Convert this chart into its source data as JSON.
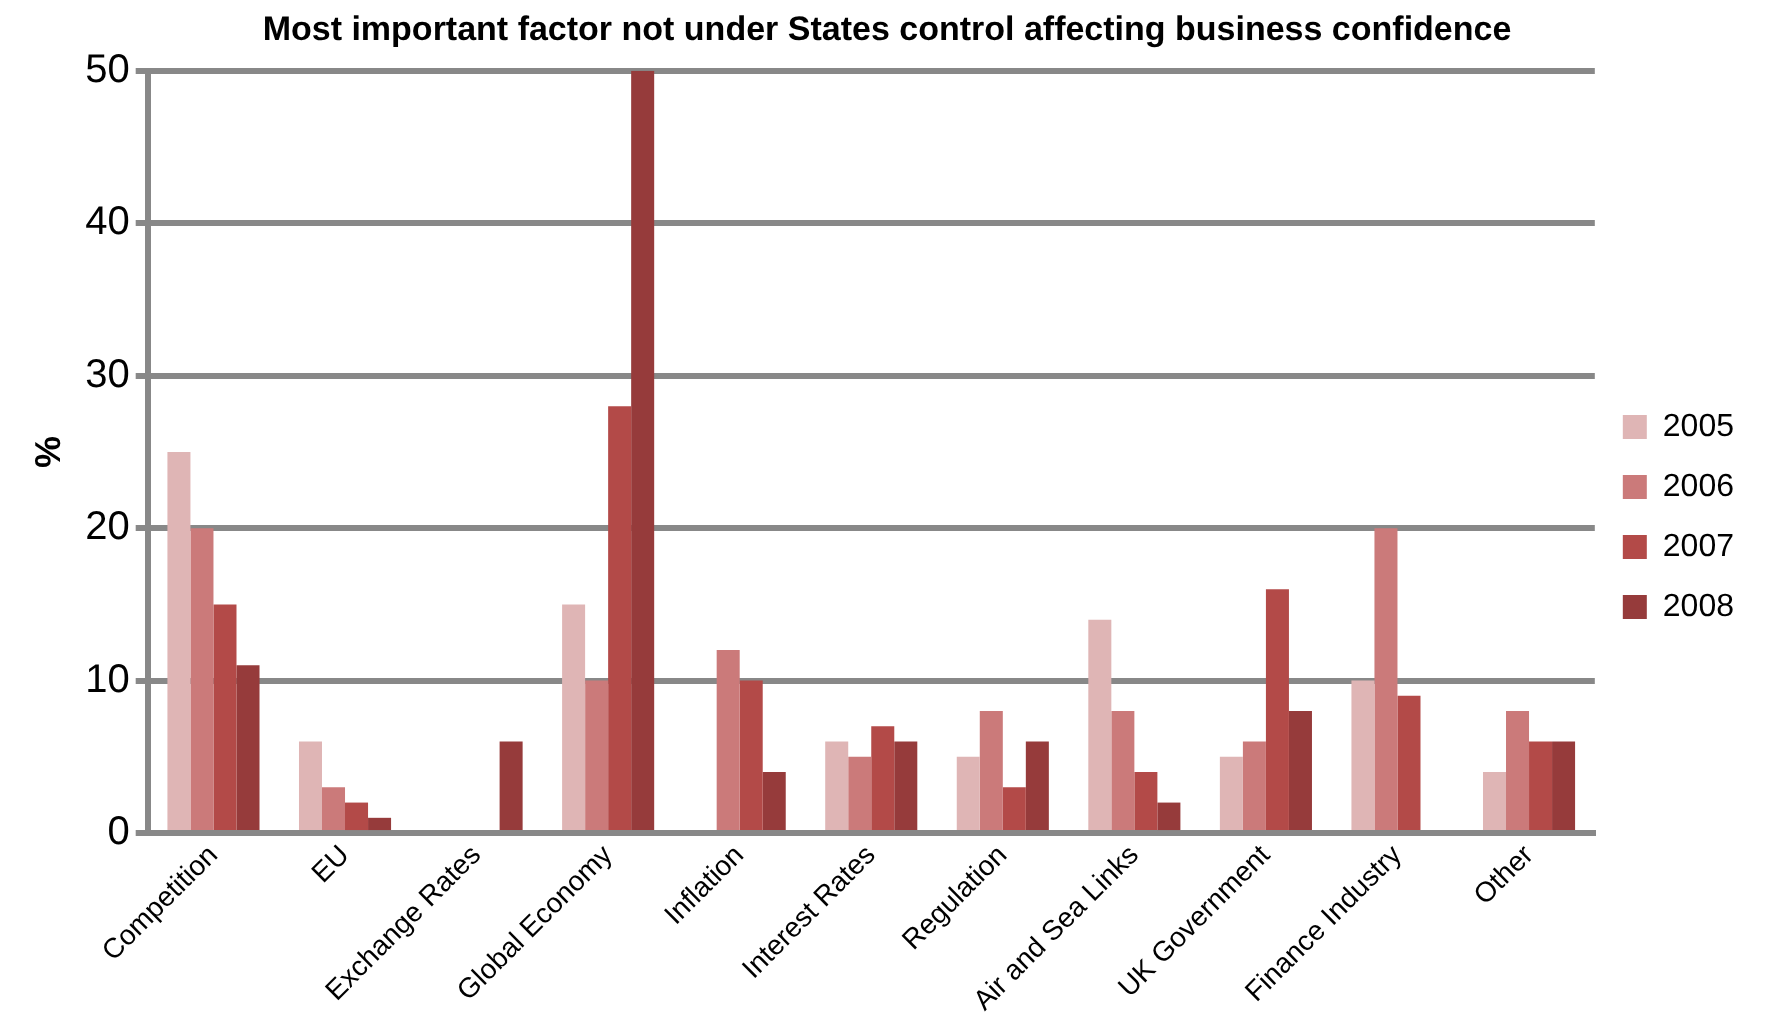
{
  "chart_data": {
    "type": "bar",
    "title": "Most important factor not under States control affecting business confidence",
    "ylabel": "%",
    "categories": [
      "Competition",
      "EU",
      "Exchange Rates",
      "Global Economy",
      "Inflation",
      "Interest Rates",
      "Regulation",
      "Air and Sea Links",
      "UK Government",
      "Finance Industry",
      "Other"
    ],
    "series": [
      {
        "name": "2005",
        "color": "#dfb5b5",
        "values": [
          25,
          6,
          null,
          15,
          null,
          6,
          5,
          14,
          5,
          10,
          4
        ]
      },
      {
        "name": "2006",
        "color": "#cb7a7a",
        "values": [
          20,
          3,
          null,
          10,
          12,
          5,
          8,
          8,
          6,
          20,
          8
        ]
      },
      {
        "name": "2007",
        "color": "#b34a48",
        "values": [
          15,
          2,
          null,
          28,
          10,
          7,
          3,
          4,
          16,
          9,
          6
        ]
      },
      {
        "name": "2008",
        "color": "#963b3b",
        "values": [
          11,
          1,
          6,
          50,
          4,
          6,
          6,
          2,
          8,
          null,
          6
        ]
      }
    ],
    "ylim": [
      0,
      50
    ],
    "yticks": [
      0,
      10,
      20,
      30,
      40,
      50
    ],
    "grid": "y",
    "legend": "right"
  }
}
